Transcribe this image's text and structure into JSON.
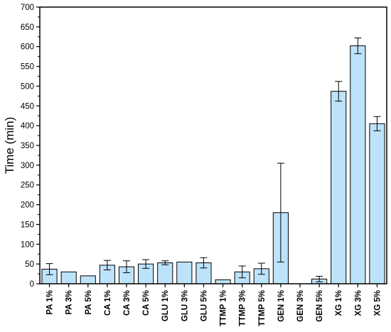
{
  "chart_data": {
    "type": "bar",
    "title": "",
    "xlabel": "",
    "ylabel": "Time (min)",
    "ylim": [
      0,
      700
    ],
    "yticks": [
      0,
      50,
      100,
      150,
      200,
      250,
      300,
      350,
      400,
      450,
      500,
      550,
      600,
      650,
      700
    ],
    "grid": false,
    "categories": [
      "PA 1%",
      "PA 3%",
      "PA 5%",
      "CA 1%",
      "CA 3%",
      "CA 5%",
      "GLU 1%",
      "GLU 3%",
      "GLU 5%",
      "TTMP 1%",
      "TTMP 3%",
      "TTMP 5%",
      "GEN 1%",
      "GEN 3%",
      "GEN 5%",
      "XG 1%",
      "XG 3%",
      "XG 5%"
    ],
    "values": [
      37,
      30,
      20,
      47,
      43,
      50,
      53,
      55,
      53,
      10,
      30,
      38,
      180,
      0,
      12,
      487,
      602,
      405
    ],
    "errors": [
      14,
      0,
      0,
      12,
      15,
      11,
      5,
      0,
      13,
      0,
      15,
      14,
      125,
      0,
      7,
      25,
      20,
      18
    ],
    "bar_color": "#bde3fb",
    "edge_color": "#000000"
  }
}
